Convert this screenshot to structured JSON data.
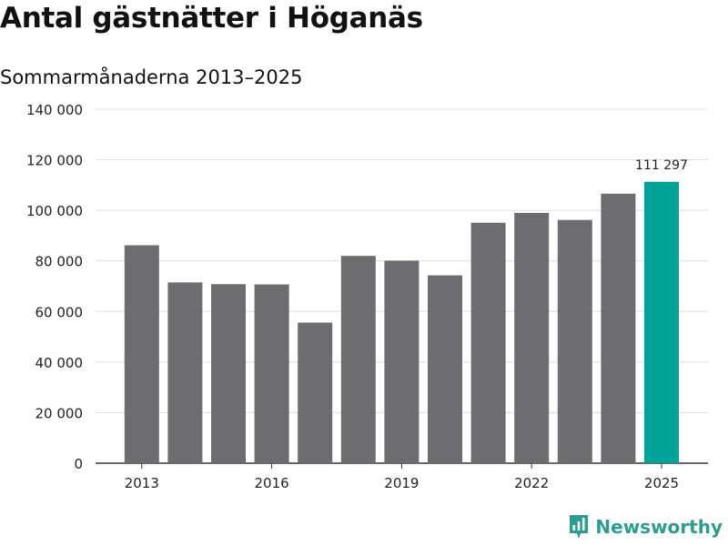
{
  "header": {
    "title": "Antal gästnätter i Höganäs",
    "subtitle": "Sommarmånaderna 2013–2025"
  },
  "brand": {
    "name": "Newsworthy",
    "icon": "newsworthy-logo-icon",
    "color": "#2a9d8f"
  },
  "colors": {
    "bar": "#6d6c71",
    "highlight": "#00a398",
    "grid": "#dddddd",
    "axis": "#333333"
  },
  "chart_data": {
    "type": "bar",
    "categories": [
      "2013",
      "2014",
      "2015",
      "2016",
      "2017",
      "2018",
      "2019",
      "2020",
      "2021",
      "2022",
      "2023",
      "2024",
      "2025"
    ],
    "values": [
      86200,
      71500,
      70800,
      70700,
      55600,
      82000,
      80100,
      74300,
      95100,
      99000,
      96200,
      106600,
      111297
    ],
    "highlight_index": 12,
    "data_labels": [
      {
        "index": 12,
        "text": "111 297"
      }
    ],
    "x_tick_labels": [
      "2013",
      "2016",
      "2019",
      "2022",
      "2025"
    ],
    "y_ticks": [
      0,
      20000,
      40000,
      60000,
      80000,
      100000,
      120000,
      140000
    ],
    "y_tick_labels": [
      "0",
      "20 000",
      "40 000",
      "60 000",
      "80 000",
      "100 000",
      "120 000",
      "140 000"
    ],
    "ylim": [
      0,
      140000
    ],
    "grid": true,
    "legend": "none"
  }
}
